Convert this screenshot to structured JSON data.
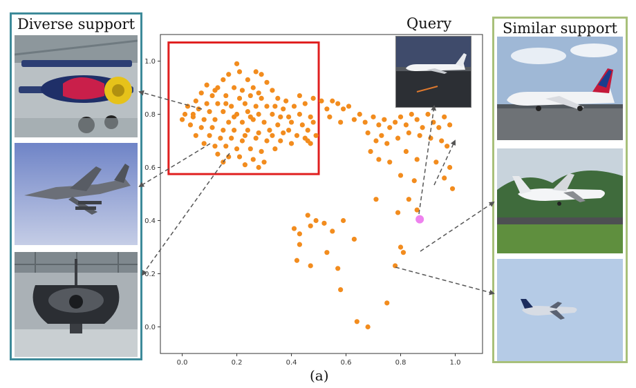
{
  "left_panel": {
    "title": "Diverse support"
  },
  "right_panel": {
    "title": "Similar support"
  },
  "query_label": "Query",
  "caption": "(a)",
  "colors": {
    "point": "#f28c1e",
    "query_point": "#ee82ee",
    "highlight_box": "#e01f1f",
    "left_border": "#3d8a99",
    "right_border": "#a8c07a",
    "arrow": "#555555"
  },
  "left_images": [
    {
      "name": "biplane-image"
    },
    {
      "name": "fighter-jet-image"
    },
    {
      "name": "jet-engine-hangar-image"
    }
  ],
  "right_images": [
    {
      "name": "airliner-ground-image"
    },
    {
      "name": "propeller-plane-image"
    },
    {
      "name": "airliner-flight-image"
    }
  ],
  "chart_data": {
    "type": "scatter",
    "title": "",
    "xlabel": "",
    "ylabel": "",
    "xlim": [
      -0.08,
      1.1
    ],
    "ylim": [
      -0.1,
      1.1
    ],
    "x_ticks": [
      "0.0",
      "0.2",
      "0.4",
      "0.6",
      "0.8",
      "1.0"
    ],
    "y_ticks": [
      "0.0",
      "0.2",
      "0.4",
      "0.6",
      "0.8",
      "1.0"
    ],
    "highlight_region": {
      "x": [
        -0.05,
        0.5
      ],
      "y": [
        0.575,
        1.07
      ]
    },
    "query_point": {
      "x": 0.87,
      "y": 0.405
    },
    "series": [
      {
        "name": "support samples",
        "points": [
          [
            0.2,
            0.99
          ],
          [
            0.21,
            0.96
          ],
          [
            0.17,
            0.95
          ],
          [
            0.27,
            0.96
          ],
          [
            0.29,
            0.95
          ],
          [
            0.15,
            0.93
          ],
          [
            0.24,
            0.93
          ],
          [
            0.31,
            0.92
          ],
          [
            0.09,
            0.91
          ],
          [
            0.13,
            0.9
          ],
          [
            0.19,
            0.9
          ],
          [
            0.22,
            0.89
          ],
          [
            0.26,
            0.9
          ],
          [
            0.33,
            0.89
          ],
          [
            0.07,
            0.88
          ],
          [
            0.11,
            0.87
          ],
          [
            0.16,
            0.87
          ],
          [
            0.21,
            0.86
          ],
          [
            0.25,
            0.87
          ],
          [
            0.29,
            0.86
          ],
          [
            0.35,
            0.86
          ],
          [
            0.38,
            0.85
          ],
          [
            0.05,
            0.85
          ],
          [
            0.09,
            0.84
          ],
          [
            0.13,
            0.84
          ],
          [
            0.18,
            0.83
          ],
          [
            0.23,
            0.84
          ],
          [
            0.27,
            0.83
          ],
          [
            0.31,
            0.83
          ],
          [
            0.37,
            0.82
          ],
          [
            0.41,
            0.83
          ],
          [
            0.45,
            0.84
          ],
          [
            0.02,
            0.83
          ],
          [
            0.06,
            0.82
          ],
          [
            0.1,
            0.81
          ],
          [
            0.15,
            0.81
          ],
          [
            0.2,
            0.8
          ],
          [
            0.24,
            0.81
          ],
          [
            0.28,
            0.8
          ],
          [
            0.33,
            0.8
          ],
          [
            0.39,
            0.79
          ],
          [
            0.43,
            0.8
          ],
          [
            0.47,
            0.79
          ],
          [
            0.01,
            0.8
          ],
          [
            0.04,
            0.79
          ],
          [
            0.08,
            0.78
          ],
          [
            0.12,
            0.78
          ],
          [
            0.17,
            0.77
          ],
          [
            0.22,
            0.77
          ],
          [
            0.26,
            0.78
          ],
          [
            0.3,
            0.77
          ],
          [
            0.35,
            0.76
          ],
          [
            0.4,
            0.77
          ],
          [
            0.44,
            0.76
          ],
          [
            0.48,
            0.77
          ],
          [
            0.03,
            0.76
          ],
          [
            0.07,
            0.75
          ],
          [
            0.11,
            0.75
          ],
          [
            0.15,
            0.74
          ],
          [
            0.19,
            0.74
          ],
          [
            0.24,
            0.74
          ],
          [
            0.28,
            0.73
          ],
          [
            0.32,
            0.74
          ],
          [
            0.37,
            0.73
          ],
          [
            0.42,
            0.72
          ],
          [
            0.46,
            0.74
          ],
          [
            0.05,
            0.72
          ],
          [
            0.1,
            0.72
          ],
          [
            0.14,
            0.71
          ],
          [
            0.18,
            0.71
          ],
          [
            0.22,
            0.7
          ],
          [
            0.27,
            0.71
          ],
          [
            0.31,
            0.7
          ],
          [
            0.36,
            0.7
          ],
          [
            0.4,
            0.69
          ],
          [
            0.45,
            0.71
          ],
          [
            0.49,
            0.72
          ],
          [
            0.08,
            0.69
          ],
          [
            0.12,
            0.68
          ],
          [
            0.16,
            0.68
          ],
          [
            0.2,
            0.67
          ],
          [
            0.25,
            0.67
          ],
          [
            0.29,
            0.66
          ],
          [
            0.34,
            0.67
          ],
          [
            0.47,
            0.69
          ],
          [
            0.13,
            0.65
          ],
          [
            0.17,
            0.64
          ],
          [
            0.21,
            0.64
          ],
          [
            0.26,
            0.63
          ],
          [
            0.3,
            0.62
          ],
          [
            0.15,
            0.62
          ],
          [
            0.23,
            0.61
          ],
          [
            0.28,
            0.6
          ],
          [
            0.16,
            0.84
          ],
          [
            0.25,
            0.79
          ],
          [
            0.34,
            0.83
          ],
          [
            0.43,
            0.87
          ],
          [
            0.48,
            0.86
          ],
          [
            0.46,
            0.7
          ],
          [
            0.04,
            0.8
          ],
          [
            0.0,
            0.78
          ],
          [
            0.36,
            0.79
          ],
          [
            0.19,
            0.79
          ],
          [
            0.12,
            0.89
          ],
          [
            0.28,
            0.88
          ],
          [
            0.23,
            0.72
          ],
          [
            0.33,
            0.72
          ],
          [
            0.39,
            0.74
          ],
          [
            0.51,
            0.85
          ],
          [
            0.53,
            0.82
          ],
          [
            0.55,
            0.85
          ],
          [
            0.57,
            0.84
          ],
          [
            0.59,
            0.82
          ],
          [
            0.61,
            0.83
          ],
          [
            0.54,
            0.79
          ],
          [
            0.58,
            0.77
          ],
          [
            0.63,
            0.78
          ],
          [
            0.65,
            0.8
          ],
          [
            0.67,
            0.77
          ],
          [
            0.7,
            0.79
          ],
          [
            0.72,
            0.76
          ],
          [
            0.74,
            0.78
          ],
          [
            0.76,
            0.75
          ],
          [
            0.78,
            0.77
          ],
          [
            0.8,
            0.79
          ],
          [
            0.82,
            0.76
          ],
          [
            0.84,
            0.8
          ],
          [
            0.86,
            0.78
          ],
          [
            0.88,
            0.75
          ],
          [
            0.9,
            0.8
          ],
          [
            0.92,
            0.77
          ],
          [
            0.94,
            0.75
          ],
          [
            0.96,
            0.79
          ],
          [
            0.98,
            0.76
          ],
          [
            0.68,
            0.73
          ],
          [
            0.71,
            0.7
          ],
          [
            0.73,
            0.72
          ],
          [
            0.75,
            0.69
          ],
          [
            0.79,
            0.71
          ],
          [
            0.83,
            0.73
          ],
          [
            0.87,
            0.72
          ],
          [
            0.91,
            0.71
          ],
          [
            0.95,
            0.7
          ],
          [
            0.97,
            0.68
          ],
          [
            0.69,
            0.66
          ],
          [
            0.72,
            0.63
          ],
          [
            0.76,
            0.62
          ],
          [
            0.82,
            0.66
          ],
          [
            0.86,
            0.63
          ],
          [
            0.93,
            0.62
          ],
          [
            0.98,
            0.6
          ],
          [
            0.8,
            0.57
          ],
          [
            0.85,
            0.55
          ],
          [
            0.96,
            0.56
          ],
          [
            0.99,
            0.52
          ],
          [
            0.71,
            0.48
          ],
          [
            0.83,
            0.48
          ],
          [
            0.79,
            0.43
          ],
          [
            0.86,
            0.44
          ],
          [
            0.41,
            0.37
          ],
          [
            0.43,
            0.35
          ],
          [
            0.46,
            0.42
          ],
          [
            0.49,
            0.4
          ],
          [
            0.52,
            0.39
          ],
          [
            0.47,
            0.38
          ],
          [
            0.55,
            0.36
          ],
          [
            0.59,
            0.4
          ],
          [
            0.43,
            0.31
          ],
          [
            0.53,
            0.28
          ],
          [
            0.63,
            0.33
          ],
          [
            0.42,
            0.25
          ],
          [
            0.47,
            0.23
          ],
          [
            0.57,
            0.22
          ],
          [
            0.78,
            0.23
          ],
          [
            0.8,
            0.3
          ],
          [
            0.81,
            0.28
          ],
          [
            0.58,
            0.14
          ],
          [
            0.75,
            0.09
          ],
          [
            0.64,
            0.02
          ],
          [
            0.68,
            0.0
          ]
        ]
      }
    ]
  }
}
